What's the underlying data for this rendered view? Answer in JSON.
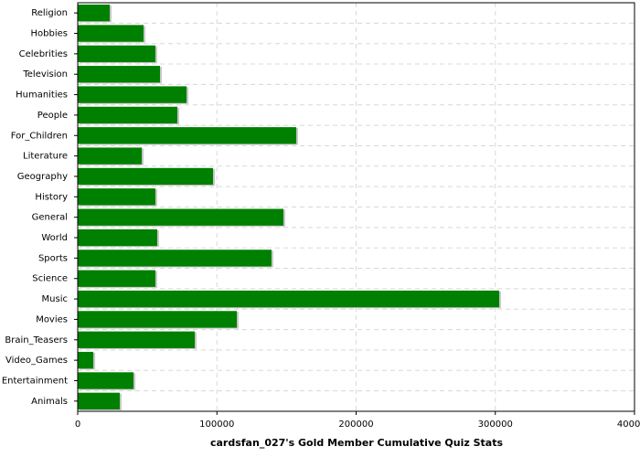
{
  "chart_data": {
    "type": "hbar",
    "title": "cardsfan_027's Gold Member Cumulative Quiz Stats",
    "categories": [
      "Religion",
      "Hobbies",
      "Celebrities",
      "Television",
      "Humanities",
      "People",
      "For_Children",
      "Literature",
      "Geography",
      "History",
      "General",
      "World",
      "Sports",
      "Science",
      "Music",
      "Movies",
      "Brain_Teasers",
      "Video_Games",
      "Entertainment",
      "Animals"
    ],
    "values": [
      23000,
      47300,
      55800,
      59100,
      78200,
      71600,
      157000,
      46000,
      97200,
      55800,
      147800,
      57100,
      139200,
      55800,
      302800,
      114300,
      84100,
      11200,
      40100,
      30200
    ],
    "color": "#008000",
    "xlim": [
      0,
      400000
    ],
    "xticks": [
      0,
      100000,
      200000,
      300000,
      400000
    ],
    "grid": true
  }
}
